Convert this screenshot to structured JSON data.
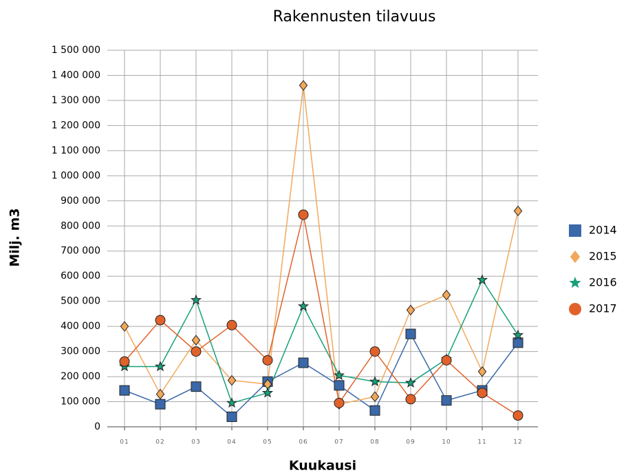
{
  "chart_data": {
    "type": "line",
    "title": "Rakennusten tilavuus",
    "x_label": "Kuukausi",
    "y_label": "Milj. m3",
    "categories": [
      "01",
      "02",
      "03",
      "04",
      "05",
      "06",
      "07",
      "08",
      "09",
      "10",
      "11",
      "12"
    ],
    "series": [
      {
        "name": "2014",
        "color": "#3a68a8",
        "marker": "square",
        "values": [
          145000,
          90000,
          160000,
          40000,
          180000,
          255000,
          165000,
          65000,
          370000,
          105000,
          145000,
          335000
        ]
      },
      {
        "name": "2015",
        "color": "#f2a85a",
        "marker": "diamond",
        "values": [
          400000,
          130000,
          345000,
          185000,
          170000,
          1360000,
          90000,
          120000,
          465000,
          525000,
          220000,
          860000
        ]
      },
      {
        "name": "2016",
        "color": "#16a07a",
        "marker": "star",
        "values": [
          240000,
          240000,
          505000,
          95000,
          135000,
          480000,
          205000,
          180000,
          175000,
          270000,
          585000,
          365000
        ]
      },
      {
        "name": "2017",
        "color": "#e0622a",
        "marker": "circle",
        "values": [
          260000,
          425000,
          300000,
          405000,
          265000,
          845000,
          95000,
          300000,
          110000,
          265000,
          135000,
          45000
        ]
      }
    ],
    "ylim": [
      0,
      1500000
    ],
    "yticks": [
      0,
      {
        "value": 100000,
        "label": "100 000"
      },
      {
        "value": 200000,
        "label": "200 000"
      },
      {
        "value": 300000,
        "label": "300 000"
      },
      {
        "value": 400000,
        "label": "400 000"
      },
      {
        "value": 500000,
        "label": "500 000"
      },
      {
        "value": 600000,
        "label": "600 000"
      },
      {
        "value": 700000,
        "label": "700 000"
      },
      {
        "value": 800000,
        "label": "800 000"
      },
      {
        "value": 900000,
        "label": "900 000"
      },
      {
        "value": 1000000,
        "label": "1 000 000"
      },
      {
        "value": 1100000,
        "label": "1 100 000"
      },
      {
        "value": 1200000,
        "label": "1 200 000"
      },
      {
        "value": 1300000,
        "label": "1 300 000"
      },
      {
        "value": 1400000,
        "label": "1 400 000"
      },
      {
        "value": 1500000,
        "label": "1 500 000"
      }
    ],
    "grid": true,
    "legend": "right"
  }
}
